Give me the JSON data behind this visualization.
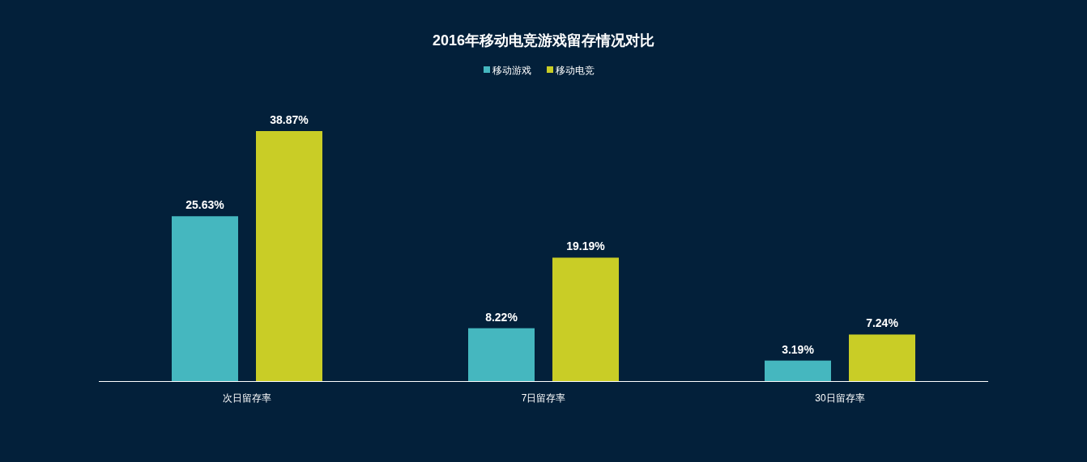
{
  "chart_data": {
    "type": "bar",
    "title": "2016年移动电竞游戏留存情况对比",
    "categories": [
      "次日留存率",
      "7日留存率",
      "30日留存率"
    ],
    "legend": "top",
    "series": [
      {
        "name": "移动游戏",
        "color": "#45b7bf",
        "values": [
          25.63,
          8.22,
          3.19
        ],
        "value_labels": [
          "25.63%",
          "8.22%",
          "3.19%"
        ]
      },
      {
        "name": "移动电竞",
        "color": "#c9cd26",
        "values": [
          38.87,
          19.19,
          7.24
        ],
        "value_labels": [
          "38.87%",
          "19.19%",
          "7.24%"
        ]
      }
    ]
  }
}
